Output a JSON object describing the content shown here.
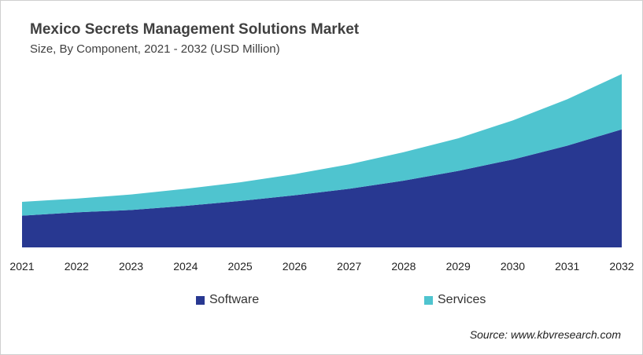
{
  "chart_data": {
    "type": "area",
    "stacked": true,
    "title": "Mexico Secrets Management Solutions Market",
    "subtitle": "Size, By Component, 2021 - 2032 (USD Million)",
    "categories": [
      "2021",
      "2022",
      "2023",
      "2024",
      "2025",
      "2026",
      "2027",
      "2028",
      "2029",
      "2030",
      "2031",
      "2032"
    ],
    "series": [
      {
        "name": "Software",
        "color": "#283891",
        "values": [
          39,
          43,
          46,
          51,
          57,
          64,
          72,
          82,
          94,
          108,
          125,
          145
        ]
      },
      {
        "name": "Services",
        "color": "#4fc4cf",
        "values": [
          17,
          17,
          19,
          21,
          23,
          26,
          30,
          35,
          40,
          48,
          57,
          68
        ]
      }
    ],
    "ylim": [
      0,
      220
    ],
    "grid": false,
    "legend": "bottom",
    "source": "Source: www.kbvresearch.com"
  }
}
